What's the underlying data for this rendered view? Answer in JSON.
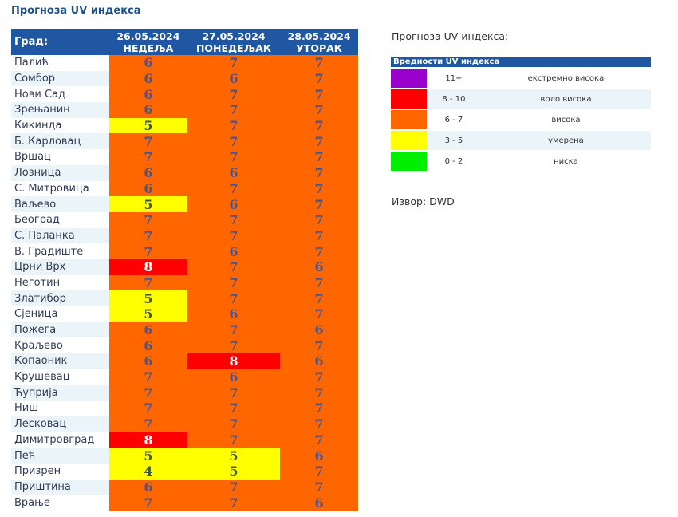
{
  "title": "Прогноза UV индекса",
  "table": {
    "city_header": "Град:",
    "days": [
      {
        "date": "26.05.2024",
        "weekday": "НЕДЕЉА"
      },
      {
        "date": "27.05.2024",
        "weekday": "ПОНЕДЕЉАК"
      },
      {
        "date": "28.05.2024",
        "weekday": "УТОРАК"
      }
    ],
    "rows": [
      {
        "city": "Палић",
        "values": [
          6,
          7,
          7
        ]
      },
      {
        "city": "Сомбор",
        "values": [
          6,
          6,
          7
        ]
      },
      {
        "city": "Нови Сад",
        "values": [
          6,
          7,
          7
        ]
      },
      {
        "city": "Зрењанин",
        "values": [
          6,
          7,
          7
        ]
      },
      {
        "city": "Кикинда",
        "values": [
          5,
          7,
          7
        ]
      },
      {
        "city": "Б. Карловац",
        "values": [
          7,
          7,
          7
        ]
      },
      {
        "city": "Вршац",
        "values": [
          7,
          7,
          7
        ]
      },
      {
        "city": "Лозница",
        "values": [
          6,
          6,
          7
        ]
      },
      {
        "city": "С. Митровица",
        "values": [
          6,
          7,
          7
        ]
      },
      {
        "city": "Ваљево",
        "values": [
          5,
          6,
          7
        ]
      },
      {
        "city": "Београд",
        "values": [
          7,
          7,
          7
        ]
      },
      {
        "city": "С. Паланка",
        "values": [
          7,
          7,
          7
        ]
      },
      {
        "city": "В. Градиште",
        "values": [
          7,
          6,
          7
        ]
      },
      {
        "city": "Црни Врх",
        "values": [
          8,
          7,
          6
        ]
      },
      {
        "city": "Неготин",
        "values": [
          7,
          7,
          7
        ]
      },
      {
        "city": "Златибор",
        "values": [
          5,
          7,
          7
        ]
      },
      {
        "city": "Сјеница",
        "values": [
          5,
          6,
          7
        ]
      },
      {
        "city": "Пожега",
        "values": [
          6,
          7,
          6
        ]
      },
      {
        "city": "Краљево",
        "values": [
          6,
          7,
          7
        ]
      },
      {
        "city": "Копаоник",
        "values": [
          6,
          8,
          6
        ]
      },
      {
        "city": "Крушевац",
        "values": [
          7,
          6,
          7
        ]
      },
      {
        "city": "Ћуприја",
        "values": [
          7,
          7,
          7
        ]
      },
      {
        "city": "Ниш",
        "values": [
          7,
          7,
          7
        ]
      },
      {
        "city": "Лесковац",
        "values": [
          7,
          7,
          7
        ]
      },
      {
        "city": "Димитровград",
        "values": [
          8,
          7,
          7
        ]
      },
      {
        "city": "Пећ",
        "values": [
          5,
          5,
          6
        ]
      },
      {
        "city": "Призрен",
        "values": [
          4,
          5,
          7
        ]
      },
      {
        "city": "Приштина",
        "values": [
          6,
          7,
          7
        ]
      },
      {
        "city": "Врање",
        "values": [
          7,
          7,
          6
        ]
      }
    ]
  },
  "legend": {
    "subtitle": "Прогноза UV индекса:",
    "header": "Вредности UV индекса",
    "items": [
      {
        "range": "11+",
        "label": "екстремно висока",
        "color": "#9900cc"
      },
      {
        "range": "8 - 10",
        "label": "врло висока",
        "color": "#ff0000"
      },
      {
        "range": "6 - 7",
        "label": "висока",
        "color": "#ff6600"
      },
      {
        "range": "3 - 5",
        "label": "умерена",
        "color": "#ffff00"
      },
      {
        "range": "0 - 2",
        "label": "ниска",
        "color": "#00ee00"
      }
    ]
  },
  "source": "Извор: DWD"
}
